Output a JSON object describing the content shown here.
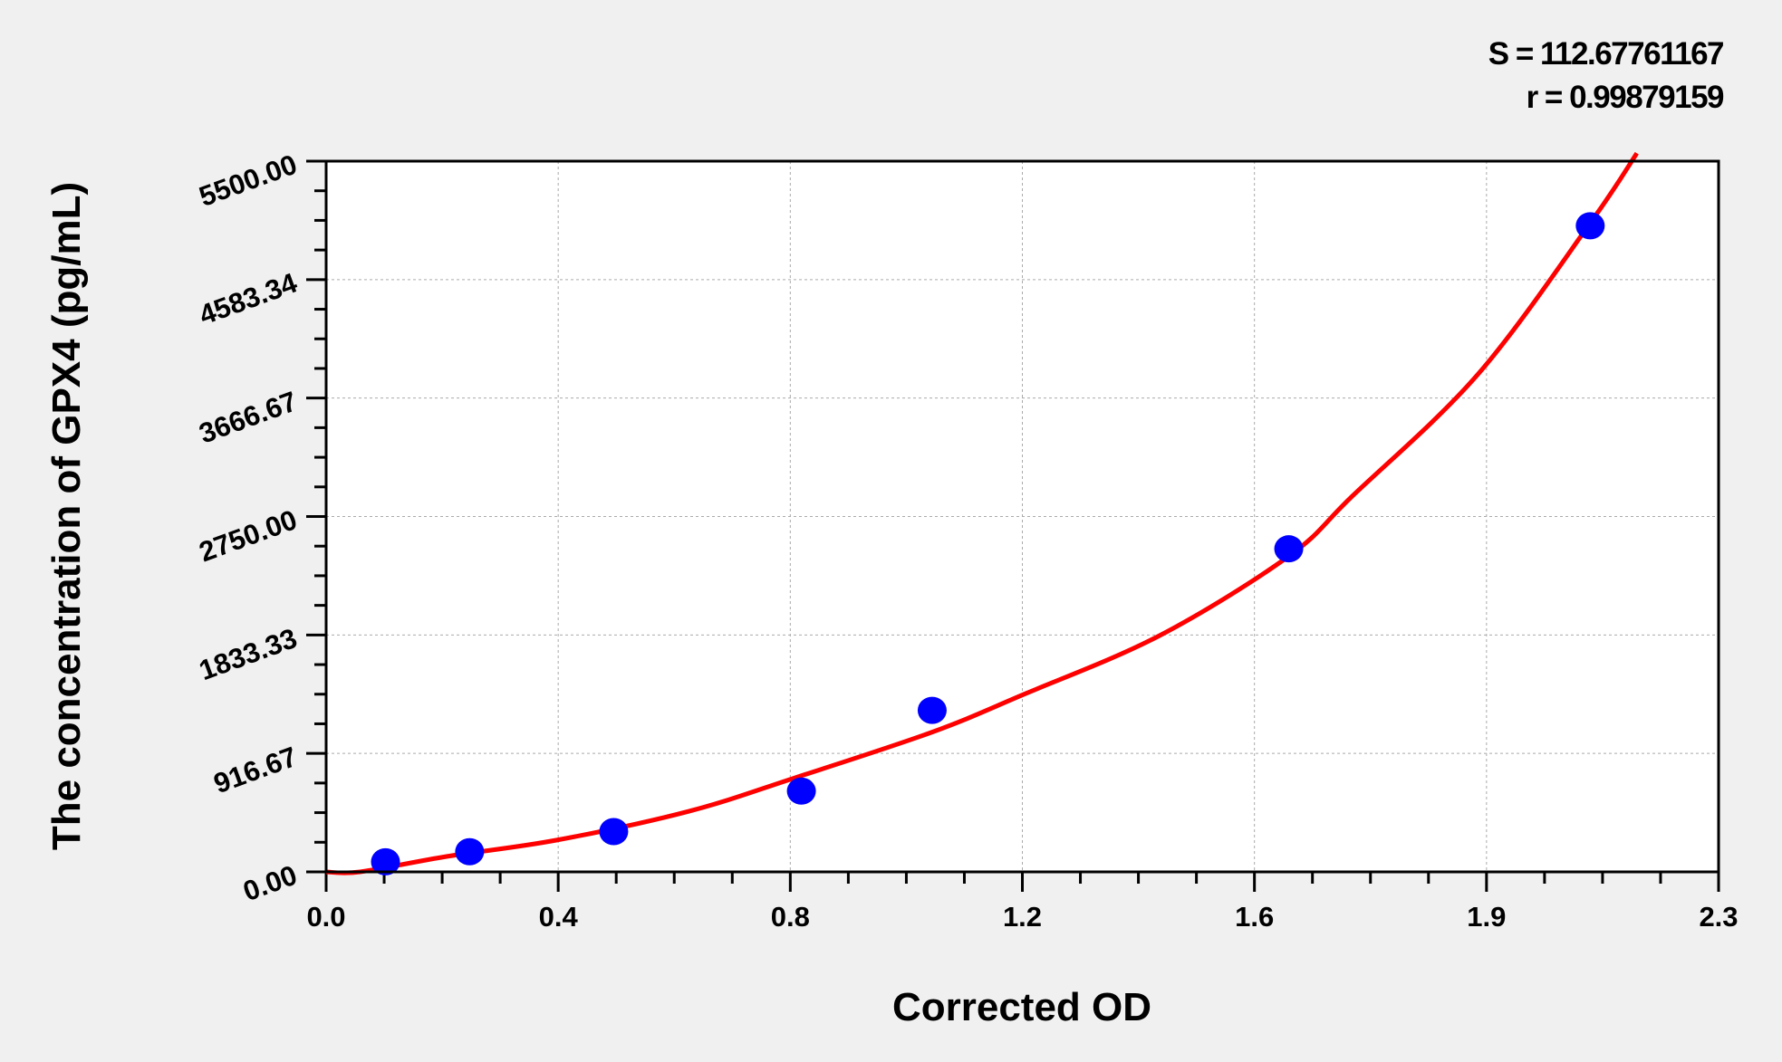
{
  "chart_data": {
    "type": "scatter",
    "title": "",
    "xlabel": "Corrected OD",
    "ylabel": "The concentration of GPX4 (pg/mL)",
    "xlim": [
      0,
      2.3
    ],
    "ylim": [
      0,
      5500
    ],
    "x_tick_labels": [
      "0.0",
      "0.4",
      "0.8",
      "1.2",
      "1.6",
      "1.9",
      "2.3"
    ],
    "y_tick_labels": [
      "0.00",
      "916.67",
      "1833.33",
      "2750.00",
      "3666.67",
      "4583.34",
      "5500.00"
    ],
    "grid": true,
    "annotations": {
      "s": "S = 112.67761167",
      "r": "r = 0.99879159"
    },
    "series": [
      {
        "type": "scatter",
        "color": "#0000ff",
        "x": [
          0.098,
          0.237,
          0.475,
          0.785,
          1.001,
          1.59,
          2.088
        ],
        "y": [
          78,
          156,
          312,
          625,
          1250,
          2500,
          5000
        ]
      },
      {
        "type": "line",
        "color": "#ff0000",
        "x": [
          0.0,
          0.056,
          0.2,
          0.381,
          0.6,
          0.775,
          1.0,
          1.151,
          1.376,
          1.59,
          1.695,
          1.902,
          2.09,
          2.165
        ],
        "y": [
          0,
          0,
          120,
          246,
          470,
          729,
          1080,
          1371,
          1827,
          2443,
          2908,
          3848,
          5034,
          5561
        ]
      }
    ]
  }
}
